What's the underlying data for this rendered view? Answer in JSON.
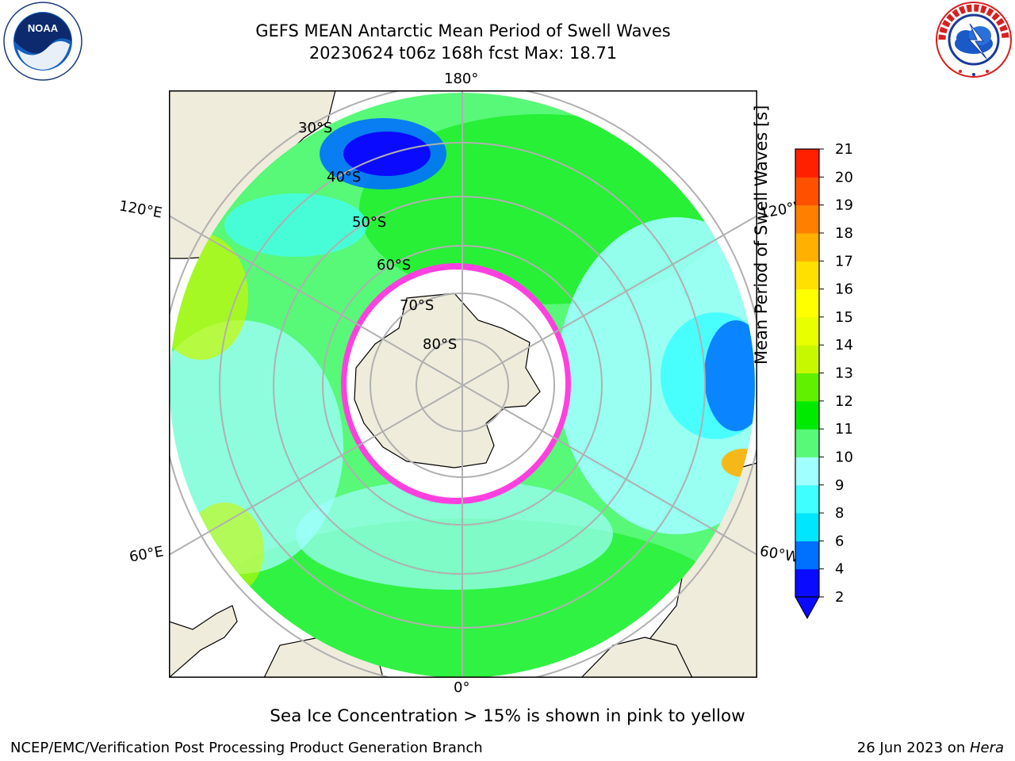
{
  "title": {
    "line1": "GEFS MEAN Antarctic Mean Period of Swell Waves",
    "line2": "20230624 t06z 168h fcst   Max: 18.71"
  },
  "map": {
    "longitude_labels": {
      "top": "180°",
      "bottom": "0°",
      "left_upper": "120°E",
      "left_lower": "60°E",
      "right_upper": "120°W",
      "right_lower": "60°W"
    },
    "latitude_labels": [
      "30°S",
      "40°S",
      "50°S",
      "60°S",
      "70°S",
      "80°S"
    ]
  },
  "colorbar": {
    "label": "Mean Period of Swell Waves [s]",
    "ticks": [
      "2",
      "4",
      "6",
      "8",
      "9",
      "10",
      "11",
      "12",
      "13",
      "14",
      "15",
      "16",
      "17",
      "18",
      "19",
      "20",
      "21"
    ],
    "colors": [
      "#0a0aff",
      "#0070ff",
      "#00e6ff",
      "#40ffff",
      "#a0ffff",
      "#58f878",
      "#00ea00",
      "#60f000",
      "#c8f800",
      "#e8ff00",
      "#ffff00",
      "#ffe000",
      "#ffb000",
      "#ff8000",
      "#ff5000",
      "#ff2000"
    ]
  },
  "notes": {
    "ice": "Sea Ice Concentration > 15% is shown in pink to yellow"
  },
  "footer": {
    "left": "NCEP/EMC/Verification Post Processing Product Generation Branch",
    "right_prefix": "26 Jun 2023 on ",
    "right_host": "Hera"
  },
  "logos": {
    "noaa": "NOAA",
    "nws_text": "NATIONAL WEATHER SERVICE"
  }
}
